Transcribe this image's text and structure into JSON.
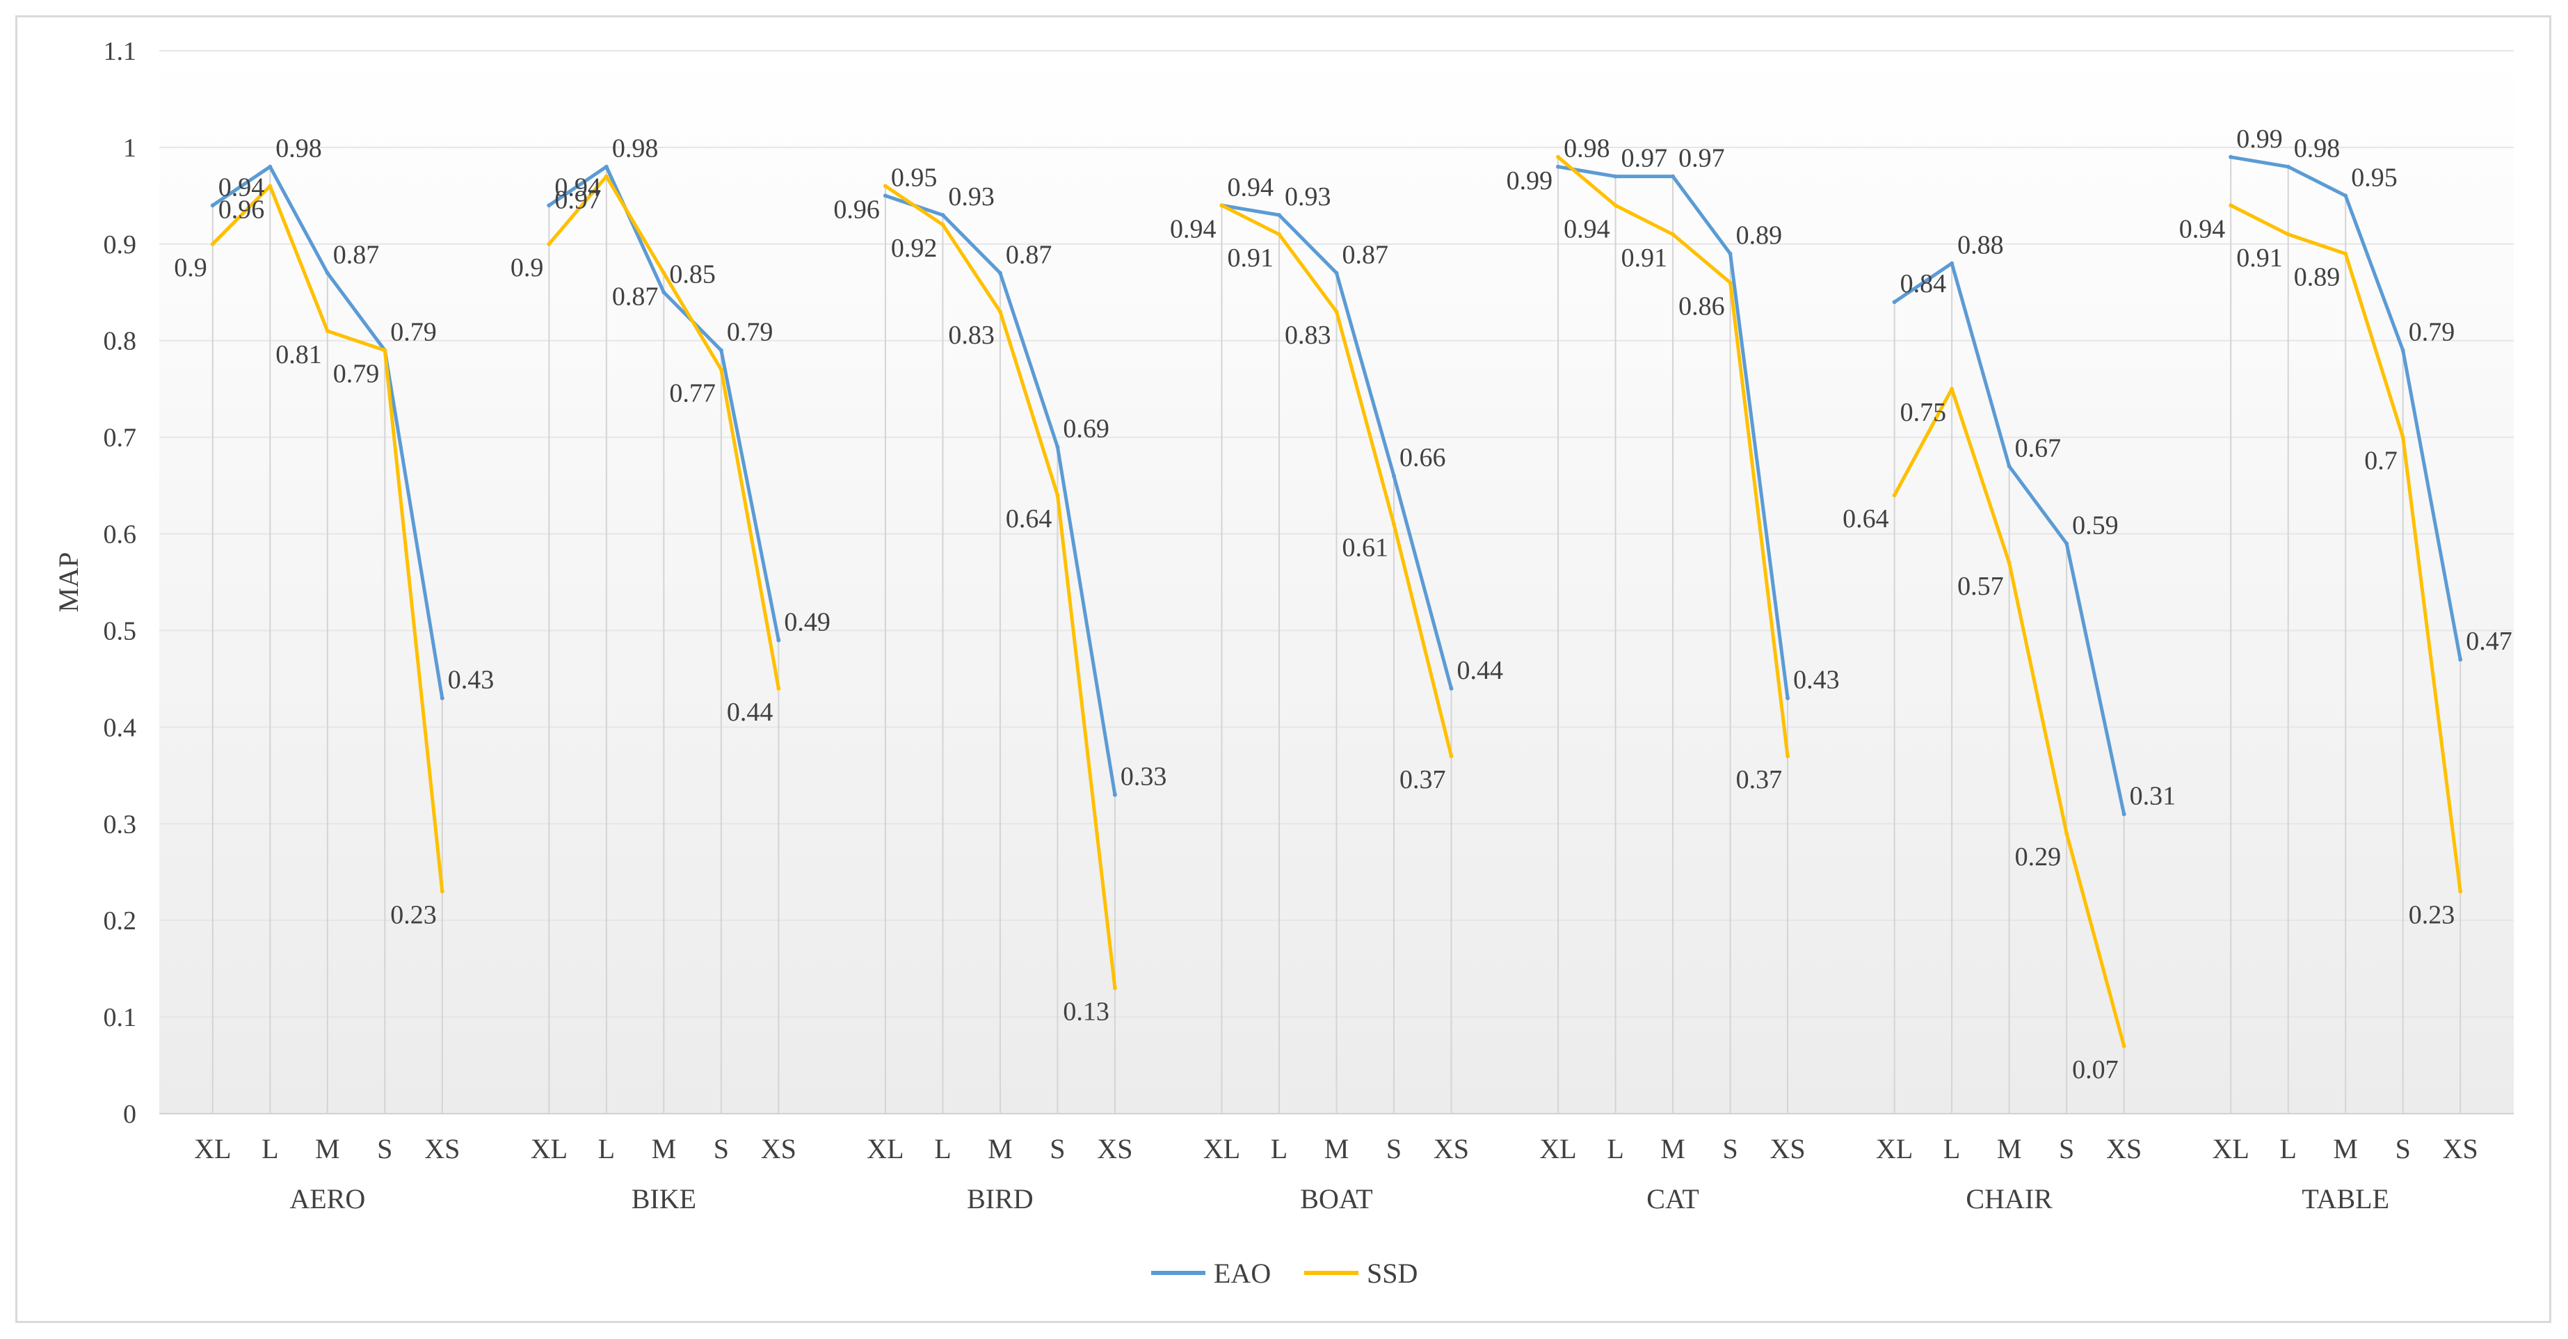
{
  "chart_data": {
    "type": "line",
    "title": "",
    "ylabel": "MAP",
    "xlabel": "",
    "ylim": [
      0,
      1.1
    ],
    "yticks": [
      "0",
      "0.1",
      "0.2",
      "0.3",
      "0.4",
      "0.5",
      "0.6",
      "0.7",
      "0.8",
      "0.9",
      "1",
      "1.1"
    ],
    "grid": true,
    "legend_position": "bottom-center",
    "groups": [
      "AERO",
      "BIKE",
      "BIRD",
      "BOAT",
      "CAT",
      "CHAIR",
      "TABLE"
    ],
    "categories": [
      "XL",
      "L",
      "M",
      "S",
      "XS"
    ],
    "series": [
      {
        "name": "EAO",
        "color": "#5b9bd5",
        "values": [
          [
            0.94,
            0.98,
            0.87,
            0.79,
            0.43
          ],
          [
            0.94,
            0.98,
            0.85,
            0.79,
            0.49
          ],
          [
            0.95,
            0.93,
            0.87,
            0.69,
            0.33
          ],
          [
            0.94,
            0.93,
            0.87,
            0.66,
            0.44
          ],
          [
            0.98,
            0.97,
            0.97,
            0.89,
            0.43
          ],
          [
            0.84,
            0.88,
            0.67,
            0.59,
            0.31
          ],
          [
            0.99,
            0.98,
            0.95,
            0.79,
            0.47
          ]
        ],
        "labels": [
          [
            "0.94",
            "0.98",
            "0.87",
            "0.79",
            "0.43"
          ],
          [
            "0.94",
            "0.98",
            "0.85",
            "0.79",
            "0.49"
          ],
          [
            "0.95",
            "0.93",
            "0.87",
            "0.69",
            "0.33"
          ],
          [
            "0.94",
            "0.93",
            "0.87",
            "0.66",
            "0.44"
          ],
          [
            "0.98",
            "0.97",
            "0.97",
            "0.89",
            "0.43"
          ],
          [
            "0.84",
            "0.88",
            "0.67",
            "0.59",
            "0.31"
          ],
          [
            "0.99",
            "0.98",
            "0.95",
            "0.79",
            "0.47"
          ]
        ]
      },
      {
        "name": "SSD",
        "color": "#ffc000",
        "values": [
          [
            0.9,
            0.96,
            0.81,
            0.79,
            0.23
          ],
          [
            0.9,
            0.97,
            0.87,
            0.77,
            0.44
          ],
          [
            0.96,
            0.92,
            0.83,
            0.64,
            0.13
          ],
          [
            0.94,
            0.91,
            0.83,
            0.61,
            0.37
          ],
          [
            0.99,
            0.94,
            0.91,
            0.86,
            0.37
          ],
          [
            0.64,
            0.75,
            0.57,
            0.29,
            0.07
          ],
          [
            0.94,
            0.91,
            0.89,
            0.7,
            0.23
          ]
        ],
        "labels": [
          [
            "0.9",
            "0.96",
            "0.81",
            "0.79",
            "0.23"
          ],
          [
            "0.9",
            "0.97",
            "0.87",
            "0.77",
            "0.44"
          ],
          [
            "0.96",
            "0.92",
            "0.83",
            "0.64",
            "0.13"
          ],
          [
            "0.94",
            "0.91",
            "0.83",
            "0.61",
            "0.37"
          ],
          [
            "0.99",
            "0.94",
            "0.91",
            "0.86",
            "0.37"
          ],
          [
            "0.64",
            "0.75",
            "0.57",
            "0.29",
            "0.07"
          ],
          [
            "0.94",
            "0.91",
            "0.89",
            "0.7",
            "0.23"
          ]
        ]
      }
    ]
  }
}
